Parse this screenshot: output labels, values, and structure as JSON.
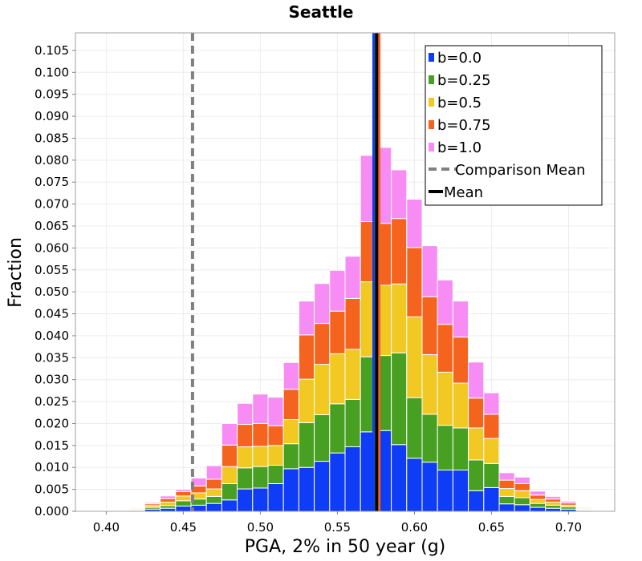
{
  "chart_data": {
    "type": "bar",
    "title": "Seattle",
    "xlabel": "PGA, 2% in 50 year (g)",
    "ylabel": "Fraction",
    "xlim": [
      0.38,
      0.73
    ],
    "ylim": [
      0.0,
      0.109
    ],
    "grid": true,
    "stacked": true,
    "bin_width": 0.01,
    "x_ticks": [
      "0.40",
      "0.45",
      "0.50",
      "0.55",
      "0.60",
      "0.65",
      "0.70"
    ],
    "y_ticks": [
      "0.000",
      "0.005",
      "0.010",
      "0.015",
      "0.020",
      "0.025",
      "0.030",
      "0.035",
      "0.040",
      "0.045",
      "0.050",
      "0.055",
      "0.060",
      "0.065",
      "0.070",
      "0.075",
      "0.080",
      "0.085",
      "0.090",
      "0.095",
      "0.100",
      "0.105"
    ],
    "x": [
      0.39,
      0.4,
      0.41,
      0.42,
      0.43,
      0.44,
      0.45,
      0.46,
      0.47,
      0.48,
      0.49,
      0.5,
      0.51,
      0.52,
      0.53,
      0.54,
      0.55,
      0.56,
      0.57,
      0.58,
      0.59,
      0.6,
      0.61,
      0.62,
      0.63,
      0.64,
      0.65,
      0.66,
      0.67,
      0.68,
      0.69,
      0.7,
      0.71,
      0.72
    ],
    "series": [
      {
        "name": "b=0.0",
        "color": "#0f3cf5",
        "values": [
          0.0001,
          0.0001,
          0.0001,
          0.0002,
          0.0005,
          0.0007,
          0.0012,
          0.0014,
          0.0018,
          0.0026,
          0.0051,
          0.0053,
          0.0063,
          0.0097,
          0.01,
          0.0114,
          0.0133,
          0.0147,
          0.0181,
          0.0184,
          0.0152,
          0.0121,
          0.0112,
          0.0094,
          0.0094,
          0.0047,
          0.0054,
          0.0017,
          0.0015,
          0.0009,
          0.0007,
          0.0005,
          0.0002,
          0.0001
        ]
      },
      {
        "name": "b=0.25",
        "color": "#48a023",
        "values": [
          0.0,
          0.0001,
          0.0001,
          0.0002,
          0.0004,
          0.0006,
          0.0012,
          0.0014,
          0.0016,
          0.0037,
          0.0048,
          0.0049,
          0.0042,
          0.0057,
          0.0102,
          0.0106,
          0.0112,
          0.0108,
          0.0171,
          0.0171,
          0.0209,
          0.0138,
          0.0109,
          0.0102,
          0.0096,
          0.007,
          0.0055,
          0.0017,
          0.0016,
          0.0009,
          0.0007,
          0.0005,
          0.0002,
          0.0001
        ]
      },
      {
        "name": "b=0.5",
        "color": "#f2c823",
        "values": [
          0.0,
          0.0001,
          0.0001,
          0.0002,
          0.0004,
          0.0008,
          0.0011,
          0.0014,
          0.0017,
          0.0039,
          0.0048,
          0.0046,
          0.0045,
          0.0055,
          0.0099,
          0.0115,
          0.0114,
          0.0114,
          0.0171,
          0.016,
          0.0157,
          0.0184,
          0.0136,
          0.0121,
          0.0102,
          0.0073,
          0.0057,
          0.0018,
          0.0016,
          0.0009,
          0.0007,
          0.0004,
          0.0002,
          0.0001
        ]
      },
      {
        "name": "b=0.75",
        "color": "#f5641e",
        "values": [
          0.0,
          0.0001,
          0.0001,
          0.0002,
          0.0004,
          0.0008,
          0.001,
          0.0016,
          0.0022,
          0.0049,
          0.0051,
          0.0052,
          0.0045,
          0.0069,
          0.0101,
          0.0093,
          0.0097,
          0.0116,
          0.0137,
          0.0141,
          0.0149,
          0.0158,
          0.0132,
          0.0109,
          0.0105,
          0.0068,
          0.0055,
          0.0019,
          0.0016,
          0.001,
          0.0007,
          0.0005,
          0.0002,
          0.0001
        ]
      },
      {
        "name": "b=1.0",
        "color": "#f88cf5",
        "values": [
          0.0,
          0.0001,
          0.0001,
          0.0001,
          0.0003,
          0.0006,
          0.0005,
          0.0018,
          0.0031,
          0.0049,
          0.0048,
          0.0067,
          0.0065,
          0.0061,
          0.0077,
          0.0091,
          0.0093,
          0.0096,
          0.0151,
          0.0173,
          0.0111,
          0.011,
          0.0116,
          0.0101,
          0.0082,
          0.0082,
          0.0049,
          0.0017,
          0.0015,
          0.0009,
          0.0006,
          0.0004,
          0.0002,
          0.0001
        ]
      }
    ],
    "mean_lines": [
      {
        "x": 0.5735,
        "color": "#0f3cf5"
      },
      {
        "x": 0.575,
        "color": "#48a023"
      },
      {
        "x": 0.5765,
        "color": "#f2c823"
      },
      {
        "x": 0.5772,
        "color": "#f5641e"
      },
      {
        "x": 0.5758,
        "color": "#f88cf5"
      },
      {
        "x": 0.5755,
        "color": "#000000"
      }
    ],
    "comparison_mean": 0.456,
    "legend": {
      "placement": "top-right",
      "entries": [
        {
          "label": "b=0.0",
          "kind": "box",
          "color": "#0f3cf5"
        },
        {
          "label": "b=0.25",
          "kind": "box",
          "color": "#48a023"
        },
        {
          "label": "b=0.5",
          "kind": "box",
          "color": "#f2c823"
        },
        {
          "label": "b=0.75",
          "kind": "box",
          "color": "#f5641e"
        },
        {
          "label": "b=1.0",
          "kind": "box",
          "color": "#f88cf5"
        },
        {
          "label": "Comparison Mean",
          "kind": "dash",
          "color": "#808080"
        },
        {
          "label": "Mean",
          "kind": "line",
          "color": "#000000"
        }
      ]
    }
  }
}
